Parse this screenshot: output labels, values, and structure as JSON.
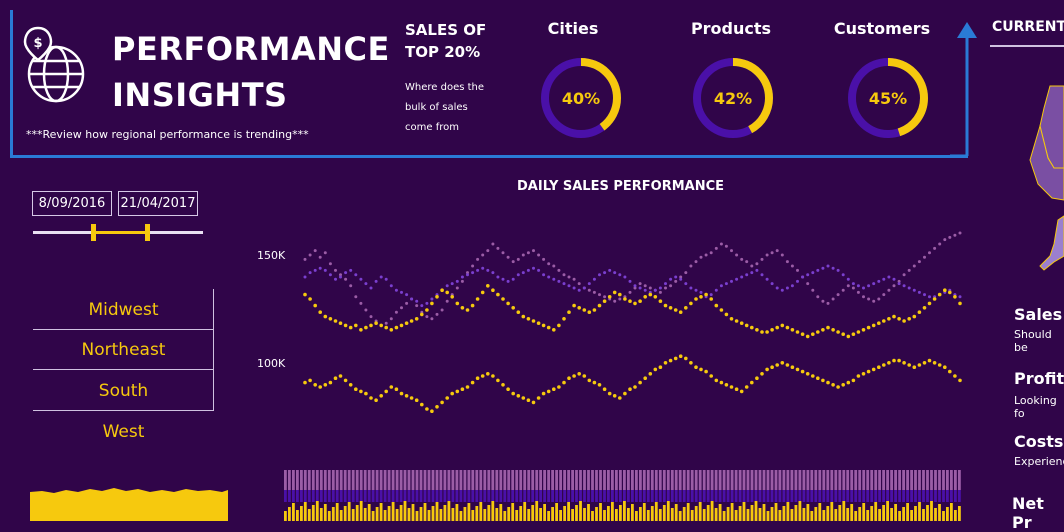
{
  "header": {
    "title_line1": "PERFORMANCE",
    "title_line2": "INSIGHTS",
    "tagline": "***Review how regional performance is trending***",
    "top_heading_line1": "SALES OF",
    "top_heading_line2": "TOP 20%",
    "top_desc_line1": "Where does the",
    "top_desc_line2": "bulk of sales",
    "top_desc_line3": "come from",
    "current_tab": "CURRENT"
  },
  "kpis": [
    {
      "label": "Cities",
      "value_text": "40%",
      "value": 0.4
    },
    {
      "label": "Products",
      "value_text": "42%",
      "value": 0.42
    },
    {
      "label": "Customers",
      "value_text": "45%",
      "value": 0.45
    }
  ],
  "date_slicer": {
    "start": "8/09/2016",
    "end": "21/04/2017",
    "range_start_fraction": 0.35,
    "range_end_fraction": 0.67
  },
  "regions": [
    "Midwest",
    "Northeast",
    "South",
    "West"
  ],
  "side_metrics": [
    {
      "title": "Sales",
      "subtitle": "Should be"
    },
    {
      "title": "Profits",
      "subtitle": "Looking fo"
    },
    {
      "title": "Costs",
      "subtitle": "Experience"
    },
    {
      "title": "Net Pr",
      "subtitle": ""
    }
  ],
  "colors": {
    "background": "#300549",
    "accent_yellow": "#f6c90e",
    "ring_track": "#4a10a8",
    "frame_blue": "#2a7bd6",
    "series_purple": "#7a3fcf",
    "series_mauve": "#9b5da6"
  },
  "chart_data": {
    "type": "line",
    "title": "DAILY SALES PERFORMANCE",
    "ylim": [
      70000,
      180000
    ],
    "yticks": [
      100000,
      150000
    ],
    "ytick_labels": [
      "100K",
      "150K"
    ],
    "x_points": 130,
    "series": [
      {
        "color": "#9b5da6",
        "values": [
          148000,
          150000,
          152000,
          149000,
          151000,
          146000,
          143000,
          141000,
          139000,
          136000,
          131000,
          128000,
          125000,
          122000,
          120000,
          118000,
          119000,
          121000,
          124000,
          126000,
          128000,
          130000,
          127000,
          124000,
          122000,
          121000,
          123000,
          125000,
          129000,
          132000,
          135000,
          138000,
          142000,
          145000,
          148000,
          150000,
          152000,
          155000,
          153000,
          151000,
          149000,
          147000,
          148000,
          150000,
          151000,
          152000,
          150000,
          148000,
          146000,
          145000,
          143000,
          141000,
          140000,
          139000,
          137000,
          135000,
          134000,
          133000,
          132000,
          131000,
          130000,
          129000,
          130000,
          131000,
          133000,
          135000,
          137000,
          136000,
          135000,
          134000,
          133000,
          135000,
          136000,
          138000,
          140000,
          142000,
          145000,
          147000,
          149000,
          150000,
          151000,
          153000,
          155000,
          154000,
          152000,
          150000,
          148000,
          147000,
          145000,
          146000,
          148000,
          150000,
          151000,
          152000,
          150000,
          147000,
          145000,
          143000,
          140000,
          137000,
          134000,
          131000,
          129000,
          128000,
          130000,
          132000,
          134000,
          136000,
          135000,
          133000,
          131000,
          130000,
          129000,
          130000,
          132000,
          134000,
          136000,
          138000,
          141000,
          143000,
          145000,
          147000,
          149000,
          151000,
          153000,
          155000,
          157000,
          158000,
          159000,
          160000
        ]
      },
      {
        "color": "#7a3fcf",
        "values": [
          140000,
          142000,
          143000,
          144000,
          143000,
          141000,
          139000,
          140000,
          142000,
          143000,
          141000,
          139000,
          137000,
          135000,
          138000,
          140000,
          139000,
          136000,
          134000,
          133000,
          132000,
          130000,
          129000,
          127000,
          128000,
          130000,
          132000,
          134000,
          136000,
          137000,
          138000,
          140000,
          141000,
          142000,
          143000,
          144000,
          143000,
          142000,
          140000,
          139000,
          138000,
          139000,
          141000,
          142000,
          143000,
          144000,
          143000,
          141000,
          140000,
          139000,
          138000,
          137000,
          136000,
          135000,
          134000,
          135000,
          137000,
          139000,
          141000,
          142000,
          143000,
          142000,
          141000,
          140000,
          138000,
          136000,
          135000,
          134000,
          133000,
          134000,
          135000,
          137000,
          139000,
          140000,
          139000,
          137000,
          135000,
          134000,
          133000,
          131000,
          132000,
          134000,
          136000,
          137000,
          138000,
          139000,
          140000,
          141000,
          142000,
          143000,
          141000,
          139000,
          137000,
          135000,
          134000,
          135000,
          136000,
          138000,
          140000,
          141000,
          142000,
          143000,
          144000,
          145000,
          144000,
          143000,
          141000,
          139000,
          137000,
          136000,
          135000,
          136000,
          137000,
          138000,
          139000,
          140000,
          139000,
          137000,
          136000,
          135000,
          134000,
          133000,
          132000,
          131000,
          131000,
          132000,
          133000,
          134000,
          132000,
          131000
        ]
      },
      {
        "color": "#f6c90e",
        "values": [
          132000,
          130000,
          127000,
          124000,
          122000,
          121000,
          120000,
          119000,
          118000,
          117000,
          118000,
          116000,
          117000,
          118000,
          119000,
          118000,
          117000,
          116000,
          117000,
          118000,
          119000,
          120000,
          121000,
          123000,
          125000,
          128000,
          131000,
          134000,
          133000,
          131000,
          128000,
          126000,
          125000,
          127000,
          130000,
          133000,
          136000,
          134000,
          132000,
          130000,
          128000,
          126000,
          124000,
          122000,
          121000,
          120000,
          119000,
          118000,
          117000,
          116000,
          118000,
          121000,
          124000,
          127000,
          126000,
          125000,
          124000,
          125000,
          127000,
          129000,
          131000,
          133000,
          132000,
          130000,
          129000,
          128000,
          129000,
          131000,
          132000,
          131000,
          129000,
          127000,
          126000,
          125000,
          124000,
          126000,
          128000,
          130000,
          131000,
          132000,
          130000,
          127000,
          125000,
          123000,
          121000,
          120000,
          119000,
          118000,
          117000,
          116000,
          115000,
          115000,
          116000,
          117000,
          118000,
          117000,
          116000,
          115000,
          114000,
          113000,
          114000,
          115000,
          116000,
          117000,
          116000,
          115000,
          114000,
          113000,
          114000,
          115000,
          116000,
          117000,
          118000,
          119000,
          120000,
          121000,
          122000,
          121000,
          120000,
          121000,
          122000,
          124000,
          126000,
          128000,
          130000,
          132000,
          134000,
          133000,
          131000,
          128000
        ]
      },
      {
        "color": "#f6c90e",
        "values": [
          92000,
          93000,
          91000,
          90000,
          91000,
          92000,
          94000,
          95000,
          93000,
          91000,
          89000,
          88000,
          87000,
          85000,
          84000,
          86000,
          88000,
          90000,
          89000,
          87000,
          86000,
          85000,
          84000,
          82000,
          80000,
          79000,
          81000,
          83000,
          85000,
          87000,
          88000,
          89000,
          90000,
          92000,
          94000,
          95000,
          96000,
          95000,
          93000,
          91000,
          89000,
          87000,
          86000,
          85000,
          84000,
          83000,
          85000,
          87000,
          88000,
          89000,
          90000,
          92000,
          94000,
          95000,
          96000,
          95000,
          93000,
          92000,
          91000,
          89000,
          87000,
          86000,
          85000,
          87000,
          89000,
          90000,
          92000,
          94000,
          96000,
          98000,
          99000,
          101000,
          102000,
          103000,
          104000,
          103000,
          101000,
          99000,
          98000,
          97000,
          95000,
          93000,
          92000,
          91000,
          90000,
          89000,
          88000,
          90000,
          92000,
          94000,
          96000,
          98000,
          99000,
          100000,
          101000,
          100000,
          99000,
          98000,
          97000,
          96000,
          95000,
          94000,
          93000,
          92000,
          91000,
          90000,
          91000,
          92000,
          93000,
          95000,
          96000,
          97000,
          98000,
          99000,
          100000,
          101000,
          102000,
          102000,
          101000,
          100000,
          99000,
          100000,
          101000,
          102000,
          101000,
          100000,
          99000,
          97000,
          95000,
          93000
        ]
      }
    ]
  }
}
